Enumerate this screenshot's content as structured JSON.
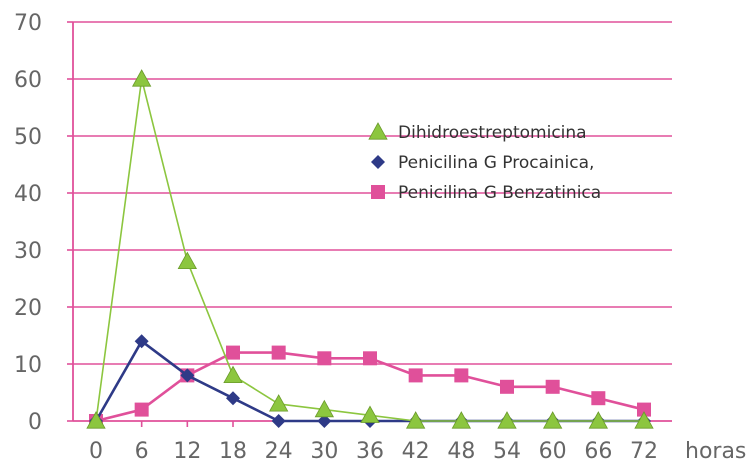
{
  "chart_data": {
    "type": "line",
    "x": [
      0,
      6,
      12,
      18,
      24,
      30,
      36,
      42,
      48,
      54,
      60,
      66,
      72
    ],
    "x_tick_labels": [
      "0",
      "6",
      "12",
      "18",
      "24",
      "30",
      "36",
      "42",
      "48",
      "54",
      "60",
      "66",
      "72"
    ],
    "y_tick_labels": [
      "0",
      "10",
      "20",
      "30",
      "40",
      "50",
      "60",
      "70"
    ],
    "ylim": [
      0,
      70
    ],
    "xlim": [
      0,
      72
    ],
    "x_unit_label": "horas",
    "grid": true,
    "legend_position": "top-right",
    "series": [
      {
        "name": "Dihidroestreptomicina",
        "color": "#8cc63f",
        "marker": "triangle",
        "values": [
          0,
          60,
          28,
          8,
          3,
          2,
          1,
          0,
          0,
          0,
          0,
          0,
          0
        ]
      },
      {
        "name": "Penicilina G Procainica,",
        "color": "#2e3a87",
        "marker": "diamond",
        "values": [
          0,
          14,
          8,
          4,
          0,
          0,
          0,
          0,
          0,
          0,
          0,
          0,
          0
        ]
      },
      {
        "name": "Penicilina G Benzatinica",
        "color": "#e0509a",
        "marker": "square",
        "values": [
          0,
          2,
          8,
          12,
          12,
          11,
          11,
          8,
          8,
          6,
          6,
          4,
          2
        ]
      }
    ],
    "colors": {
      "gridline": "#e0509a",
      "axis": "#e0509a",
      "tick_text": "#666666"
    }
  }
}
